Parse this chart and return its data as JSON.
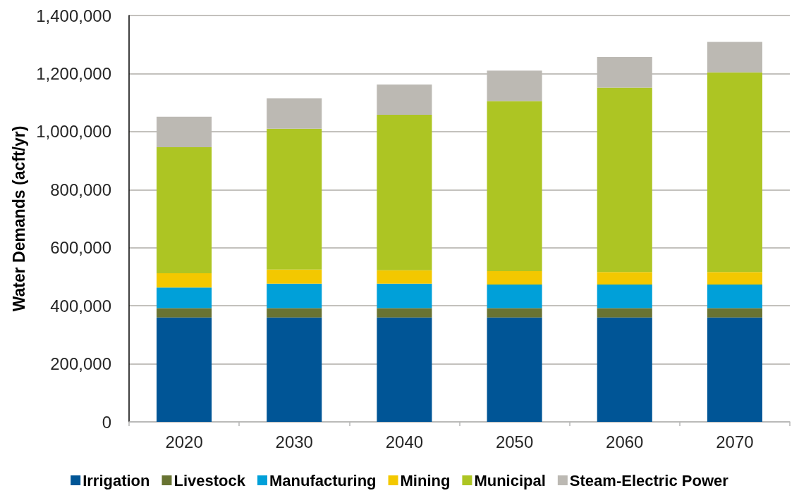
{
  "chart_data": {
    "type": "bar",
    "ylabel": "Water Demands (acft/yr)",
    "categories": [
      "2020",
      "2030",
      "2040",
      "2050",
      "2060",
      "2070"
    ],
    "stacked": true,
    "series": [
      {
        "name": "Irrigation",
        "color": "#005596",
        "values": [
          360000,
          360000,
          360000,
          360000,
          360000,
          360000
        ]
      },
      {
        "name": "Livestock",
        "color": "#687332",
        "values": [
          32000,
          32000,
          32000,
          32000,
          32000,
          32000
        ]
      },
      {
        "name": "Manufacturing",
        "color": "#00a0d9",
        "values": [
          71000,
          84000,
          84000,
          81000,
          81000,
          81000
        ]
      },
      {
        "name": "Mining",
        "color": "#f3c800",
        "values": [
          49000,
          49000,
          46000,
          46000,
          43000,
          43000
        ]
      },
      {
        "name": "Municipal",
        "color": "#adc523",
        "values": [
          434000,
          485000,
          536000,
          586000,
          635000,
          688000
        ]
      },
      {
        "name": "Steam-Electric Power",
        "color": "#bcb9b3",
        "values": [
          105000,
          105000,
          104000,
          105000,
          106000,
          105000
        ]
      }
    ],
    "ylim": [
      0,
      1400000
    ],
    "yticks": [
      0,
      {
        "value": 200000,
        "label": "200,000"
      },
      {
        "value": 400000,
        "label": "400,000"
      },
      {
        "value": 600000,
        "label": "600,000"
      },
      {
        "value": 800000,
        "label": "800,000"
      },
      {
        "value": 1000000,
        "label": "1,000,000"
      },
      {
        "value": 1200000,
        "label": "1,200,000"
      },
      {
        "value": 1400000,
        "label": "1,400,000"
      }
    ],
    "grid": "y",
    "legend": "bottom"
  }
}
